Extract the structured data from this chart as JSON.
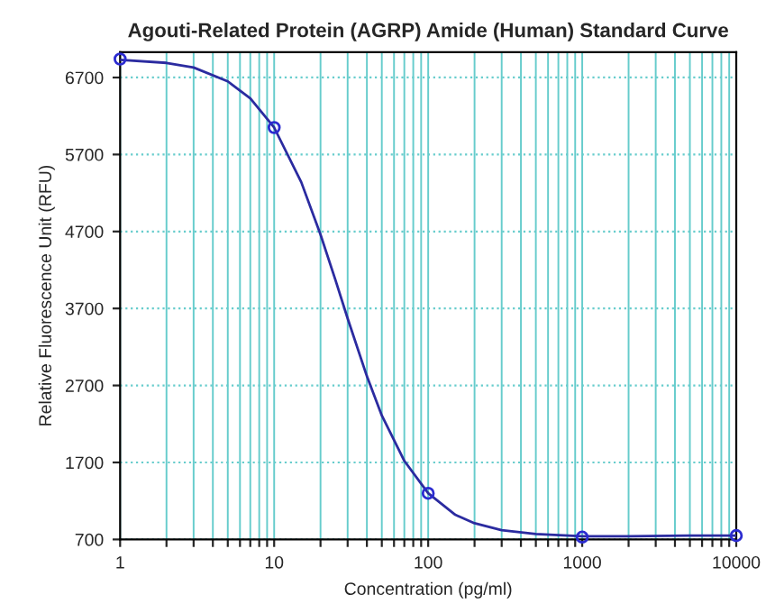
{
  "chart_data": {
    "type": "line",
    "title": "Agouti-Related Protein (AGRP) Amide (Human) Standard Curve",
    "xlabel": "Concentration (pg/ml)",
    "ylabel": "Relative Fluorescence Unit (RFU)",
    "series": [
      {
        "color": "#2b2ba0",
        "marker": "none",
        "x": [
          1,
          2,
          3,
          5,
          7,
          10,
          15,
          20,
          25,
          30,
          40,
          50,
          70,
          100,
          150,
          200,
          300,
          500,
          1000,
          2000,
          5000,
          10000
        ],
        "values": [
          6930,
          6890,
          6830,
          6650,
          6430,
          6050,
          5340,
          4660,
          4070,
          3570,
          2820,
          2310,
          1720,
          1300,
          1020,
          910,
          820,
          770,
          740,
          740,
          750,
          750
        ]
      },
      {
        "type": "scatter",
        "color": "#2b2bd0",
        "marker": "circle",
        "x": [
          1,
          10,
          100,
          1000,
          10000
        ],
        "values": [
          6940,
          6050,
          1300,
          730,
          750
        ]
      }
    ],
    "log": "x",
    "xlim": [
      1,
      10000
    ],
    "xticks": [
      1,
      {
        "value": 2,
        "label": null
      },
      {
        "value": 3,
        "label": null
      },
      {
        "value": 4,
        "label": null
      },
      {
        "value": 5,
        "label": null
      },
      {
        "value": 6,
        "label": null
      },
      {
        "value": 7,
        "label": null
      },
      {
        "value": 8,
        "label": null
      },
      {
        "value": 9,
        "label": null
      },
      10,
      {
        "value": 20,
        "label": null
      },
      {
        "value": 30,
        "label": null
      },
      {
        "value": 40,
        "label": null
      },
      {
        "value": 50,
        "label": null
      },
      {
        "value": 60,
        "label": null
      },
      {
        "value": 70,
        "label": null
      },
      {
        "value": 80,
        "label": null
      },
      {
        "value": 90,
        "label": null
      },
      100,
      {
        "value": 200,
        "label": null
      },
      {
        "value": 300,
        "label": null
      },
      {
        "value": 400,
        "label": null
      },
      {
        "value": 500,
        "label": null
      },
      {
        "value": 600,
        "label": null
      },
      {
        "value": 700,
        "label": null
      },
      {
        "value": 800,
        "label": null
      },
      {
        "value": 900,
        "label": null
      },
      1000,
      {
        "value": 2000,
        "label": null
      },
      {
        "value": 3000,
        "label": null
      },
      {
        "value": 4000,
        "label": null
      },
      {
        "value": 5000,
        "label": null
      },
      {
        "value": 6000,
        "label": null
      },
      {
        "value": 7000,
        "label": null
      },
      {
        "value": 8000,
        "label": null
      },
      {
        "value": 9000,
        "label": null
      },
      10000
    ],
    "ylim": [
      700,
      7030
    ],
    "yticks": [
      700,
      1700,
      2700,
      3700,
      4700,
      5700,
      6700
    ],
    "grid": true,
    "legend": false
  }
}
